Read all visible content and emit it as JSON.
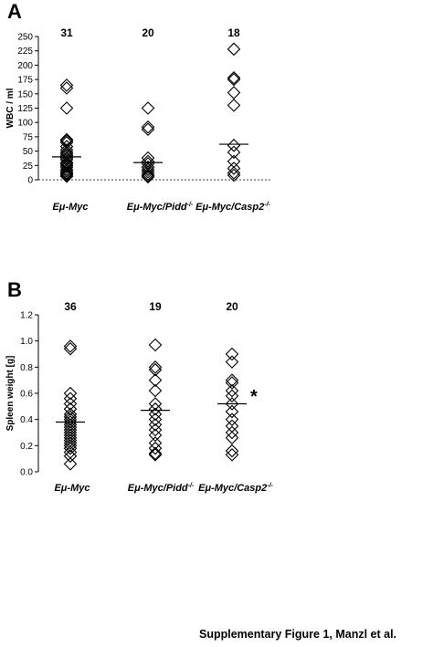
{
  "caption": "Supplementary Figure 1, Manzl et al.",
  "chart_data": [
    {
      "panel": "A",
      "type": "scatter",
      "ylabel": "WBC / ml",
      "ylim": [
        0,
        250
      ],
      "yticks": [
        0,
        25,
        50,
        75,
        100,
        125,
        150,
        175,
        200,
        225,
        250
      ],
      "reference_line": 0,
      "categories": [
        {
          "base": "Eμ-Myc",
          "sup": ""
        },
        {
          "base": "Eμ-Myc/Pidd",
          "sup": "-/-"
        },
        {
          "base": "Eμ-Myc/Casp2",
          "sup": "-/-"
        }
      ],
      "counts": [
        "31",
        "20",
        "18"
      ],
      "means": [
        40,
        30,
        62
      ],
      "points": [
        [
          165,
          160,
          125,
          70,
          68,
          65,
          58,
          52,
          48,
          45,
          42,
          38,
          35,
          30,
          28,
          25,
          22,
          18,
          15,
          12,
          10,
          8,
          6
        ],
        [
          125,
          92,
          88,
          38,
          32,
          28,
          22,
          18,
          14,
          10,
          7,
          5
        ],
        [
          228,
          178,
          175,
          152,
          130,
          60,
          48,
          32,
          20,
          12,
          8
        ]
      ],
      "annotation": ""
    },
    {
      "panel": "B",
      "type": "scatter",
      "ylabel": "Spleen weight [g]",
      "ylim": [
        0,
        1.2
      ],
      "yticks": [
        0,
        0.2,
        0.4,
        0.6,
        0.8,
        1.0,
        1.2
      ],
      "reference_line": null,
      "categories": [
        {
          "base": "Eμ-Myc",
          "sup": ""
        },
        {
          "base": "Eμ-Myc/Pidd",
          "sup": "-/-"
        },
        {
          "base": "Eμ-Myc/Casp2",
          "sup": "-/-"
        }
      ],
      "counts": [
        "36",
        "19",
        "20"
      ],
      "means": [
        0.38,
        0.47,
        0.52
      ],
      "points": [
        [
          0.96,
          0.94,
          0.6,
          0.56,
          0.52,
          0.48,
          0.44,
          0.42,
          0.4,
          0.38,
          0.36,
          0.34,
          0.32,
          0.3,
          0.28,
          0.26,
          0.24,
          0.22,
          0.2,
          0.18,
          0.15,
          0.12,
          0.06
        ],
        [
          0.97,
          0.8,
          0.78,
          0.7,
          0.62,
          0.52,
          0.48,
          0.44,
          0.4,
          0.36,
          0.32,
          0.28,
          0.22,
          0.18,
          0.14,
          0.13
        ],
        [
          0.9,
          0.84,
          0.7,
          0.68,
          0.62,
          0.58,
          0.52,
          0.46,
          0.4,
          0.35,
          0.3,
          0.26,
          0.16,
          0.13
        ]
      ],
      "annotation": "*"
    }
  ]
}
